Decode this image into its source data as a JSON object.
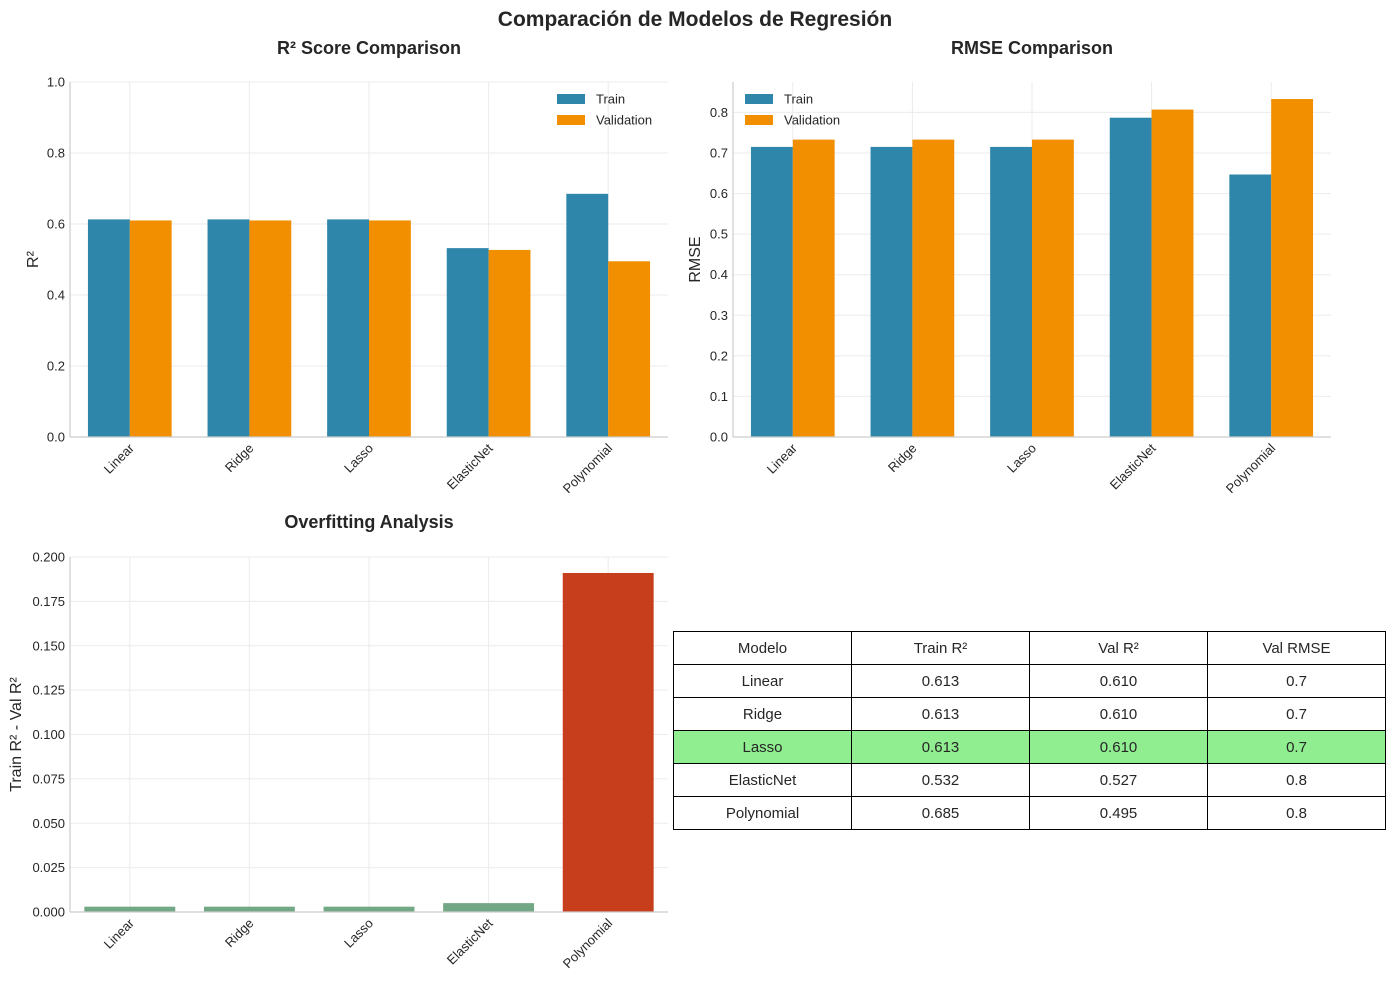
{
  "suptitle": "Comparación de Modelos de Regresión",
  "colors": {
    "train": "#2e86ab",
    "validation": "#f18f01",
    "low_overfit": "#6aa37f",
    "high_overfit": "#c73e1d",
    "highlight_row": "#90ee90"
  },
  "chart_data": [
    {
      "type": "bar",
      "title": "R² Score Comparison",
      "xlabel": "",
      "ylabel": "R²",
      "categories": [
        "Linear",
        "Ridge",
        "Lasso",
        "ElasticNet",
        "Polynomial"
      ],
      "series": [
        {
          "name": "Train",
          "values": [
            0.613,
            0.613,
            0.613,
            0.532,
            0.685
          ]
        },
        {
          "name": "Validation",
          "values": [
            0.61,
            0.61,
            0.61,
            0.527,
            0.495
          ]
        }
      ],
      "ylim": [
        0,
        1.0
      ],
      "yticks": [
        "0.0",
        "0.2",
        "0.4",
        "0.6",
        "0.8",
        "1.0"
      ],
      "grid": true,
      "legend": "top-right"
    },
    {
      "type": "bar",
      "title": "RMSE Comparison",
      "xlabel": "",
      "ylabel": "RMSE",
      "categories": [
        "Linear",
        "Ridge",
        "Lasso",
        "ElasticNet",
        "Polynomial"
      ],
      "series": [
        {
          "name": "Train",
          "values": [
            0.715,
            0.715,
            0.715,
            0.787,
            0.647
          ]
        },
        {
          "name": "Validation",
          "values": [
            0.733,
            0.733,
            0.733,
            0.807,
            0.833
          ]
        }
      ],
      "ylim": [
        0,
        0.875
      ],
      "yticks": [
        "0.0",
        "0.1",
        "0.2",
        "0.3",
        "0.4",
        "0.5",
        "0.6",
        "0.7",
        "0.8"
      ],
      "grid": true,
      "legend": "top-left"
    },
    {
      "type": "bar",
      "title": "Overfitting Analysis",
      "xlabel": "",
      "ylabel": "Train R² - Val R²",
      "categories": [
        "Linear",
        "Ridge",
        "Lasso",
        "ElasticNet",
        "Polynomial"
      ],
      "values": [
        0.003,
        0.003,
        0.003,
        0.005,
        0.191
      ],
      "ylim": [
        0,
        0.2
      ],
      "yticks": [
        "0.000",
        "0.025",
        "0.050",
        "0.075",
        "0.100",
        "0.125",
        "0.150",
        "0.175",
        "0.200"
      ],
      "grid": true
    },
    {
      "type": "table",
      "columns": [
        "Modelo",
        "Train R²",
        "Val R²",
        "Val RMSE"
      ],
      "rows": [
        [
          "Linear",
          "0.613",
          "0.610",
          "0.7"
        ],
        [
          "Ridge",
          "0.613",
          "0.610",
          "0.7"
        ],
        [
          "Lasso",
          "0.613",
          "0.610",
          "0.7"
        ],
        [
          "ElasticNet",
          "0.532",
          "0.527",
          "0.8"
        ],
        [
          "Polynomial",
          "0.685",
          "0.495",
          "0.8"
        ]
      ],
      "highlighted_row": "Lasso"
    }
  ]
}
